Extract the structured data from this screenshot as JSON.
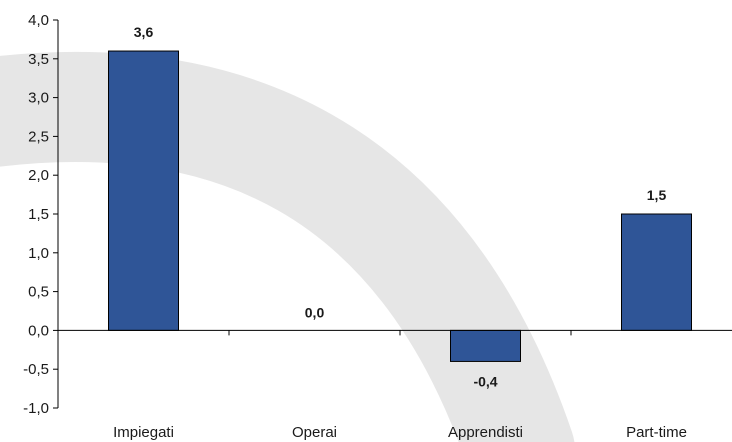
{
  "chart_data": {
    "type": "bar",
    "categories": [
      "Impiegati",
      "Operai",
      "Apprendisti",
      "Part-time"
    ],
    "values": [
      3.6,
      0.0,
      -0.4,
      1.5
    ],
    "data_labels": [
      "3,6",
      "0,0",
      "-0,4",
      "1,5"
    ],
    "y_ticks": [
      4.0,
      3.5,
      3.0,
      2.5,
      2.0,
      1.5,
      1.0,
      0.5,
      0.0,
      -0.5,
      -1.0
    ],
    "y_tick_labels": [
      "4,0",
      "3,5",
      "3,0",
      "2,5",
      "2,0",
      "1,5",
      "1,0",
      "0,5",
      "0,0",
      "-0,5",
      "-1,0"
    ],
    "ylim": [
      -1.0,
      4.0
    ],
    "title": "",
    "xlabel": "",
    "ylabel": "",
    "grid": false,
    "legend": "none",
    "bar_color": "#2f5597",
    "bar_border_color": "#000000",
    "watermark_color": "#e6e6e6"
  }
}
